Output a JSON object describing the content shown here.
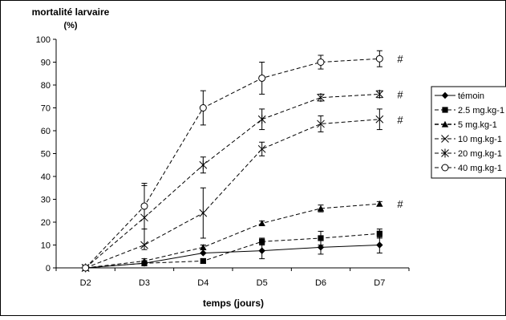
{
  "chart_data": {
    "type": "line",
    "ylabel_line1": "mortalité larvaire",
    "ylabel_line2": "(%)",
    "xlabel": "temps (jours)",
    "categories": [
      "D2",
      "D3",
      "D4",
      "D5",
      "D6",
      "D7"
    ],
    "ylim": [
      0,
      100
    ],
    "yticks": [
      "0",
      "10",
      "20",
      "30",
      "40",
      "50",
      "60",
      "70",
      "80",
      "90",
      "100"
    ],
    "grid": false,
    "legend_position": "right",
    "significance_marker": "#",
    "series": [
      {
        "name": "témoin",
        "marker": "diamond",
        "dash": "solid",
        "values": [
          0,
          2,
          6.5,
          7.5,
          9,
          10
        ],
        "errors": [
          0,
          0,
          0,
          3.5,
          3,
          3.5
        ],
        "sig": false
      },
      {
        "name": "2.5 mg.kg-1",
        "marker": "square",
        "dash": "dashed",
        "values": [
          0,
          2,
          3,
          11.5,
          13,
          15
        ],
        "errors": [
          0,
          0,
          1,
          1.5,
          3,
          2
        ],
        "sig": false
      },
      {
        "name": "5 mg.kg-1",
        "marker": "triangle",
        "dash": "dashed",
        "values": [
          0,
          3,
          9,
          19.5,
          26,
          28
        ],
        "errors": [
          0,
          1,
          1,
          1,
          1.5,
          1
        ],
        "sig": true
      },
      {
        "name": "10 mg.kg-1",
        "marker": "x",
        "dash": "dashed",
        "values": [
          0,
          10,
          24,
          52,
          63,
          65
        ],
        "errors": [
          0,
          0,
          11,
          3,
          3.5,
          4.5
        ],
        "sig": true
      },
      {
        "name": "20 mg.kg-1",
        "marker": "asterisk",
        "dash": "dashed",
        "values": [
          0,
          22,
          45,
          65,
          74.5,
          76
        ],
        "errors": [
          0,
          14,
          3.5,
          4.5,
          1.5,
          1.5
        ],
        "sig": true
      },
      {
        "name": "40 mg.kg-1",
        "marker": "circle",
        "dash": "dashed",
        "values": [
          0,
          27,
          70,
          83,
          90,
          91.5
        ],
        "errors": [
          0,
          10,
          7.5,
          7,
          3,
          3.5
        ],
        "sig": true
      }
    ]
  }
}
